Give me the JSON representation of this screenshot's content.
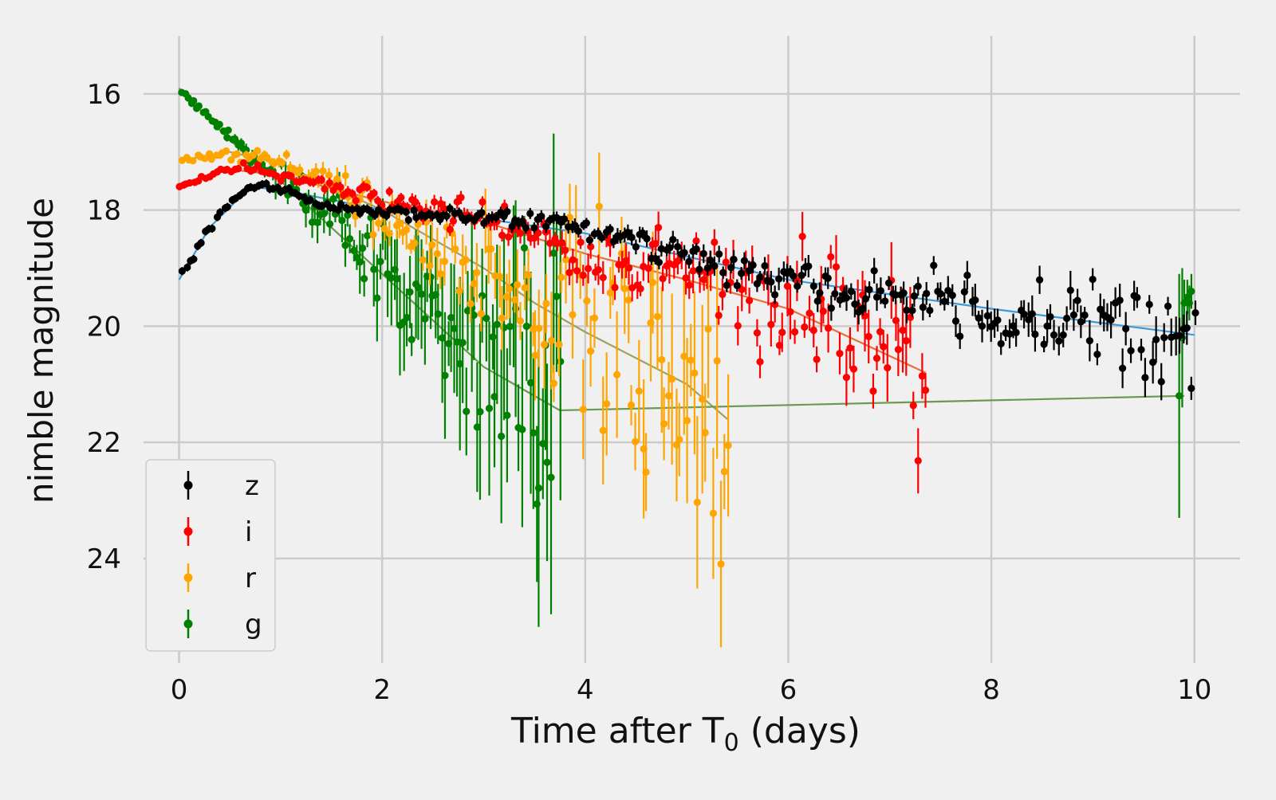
{
  "chart_data": {
    "type": "scatter",
    "title": "",
    "xlabel": "Time after T",
    "xlabel_subscript": "0",
    "xlabel_suffix": " (days)",
    "ylabel": "nimble magnitude",
    "xlim": [
      -0.35,
      10.45
    ],
    "ylim": [
      25.8,
      15.0
    ],
    "y_inverted": true,
    "grid": true,
    "legend_position": "lower-left",
    "x_ticks": [
      0,
      2,
      4,
      6,
      8,
      10
    ],
    "y_ticks": [
      16,
      18,
      20,
      22,
      24
    ],
    "series": [
      {
        "name": "z",
        "color": "#000000",
        "model_color": "#3a9ad9",
        "anchors": [
          [
            0.0,
            19.2
          ],
          [
            0.3,
            18.3
          ],
          [
            0.6,
            17.7
          ],
          [
            0.8,
            17.55
          ],
          [
            1.0,
            17.65
          ],
          [
            1.5,
            17.95
          ],
          [
            2.0,
            18.05
          ],
          [
            3.0,
            18.12
          ],
          [
            3.7,
            18.2
          ],
          [
            4.5,
            18.55
          ],
          [
            5.5,
            19.05
          ],
          [
            6.5,
            19.35
          ],
          [
            8.0,
            19.75
          ],
          [
            9.0,
            19.95
          ],
          [
            10.0,
            20.15
          ]
        ],
        "t_start": 0.0,
        "t_end": 10.0,
        "count": 270,
        "err_base": 0.07,
        "err_slope": 0.055,
        "scatter": 0.45,
        "model": [
          [
            0.0,
            19.2
          ],
          [
            0.3,
            18.3
          ],
          [
            0.7,
            17.6
          ],
          [
            1.0,
            17.65
          ],
          [
            2.0,
            18.0
          ],
          [
            3.0,
            18.15
          ],
          [
            4.0,
            18.4
          ],
          [
            5.0,
            18.8
          ],
          [
            6.0,
            19.2
          ],
          [
            8.0,
            19.7
          ],
          [
            10.0,
            20.15
          ]
        ]
      },
      {
        "name": "i",
        "color": "#ff0000",
        "model_color": "#e8703a",
        "anchors": [
          [
            0.0,
            17.6
          ],
          [
            0.3,
            17.4
          ],
          [
            0.6,
            17.25
          ],
          [
            1.0,
            17.4
          ],
          [
            1.5,
            17.6
          ],
          [
            2.0,
            17.85
          ],
          [
            3.0,
            18.15
          ],
          [
            3.5,
            18.4
          ],
          [
            4.0,
            18.7
          ],
          [
            5.0,
            19.1
          ],
          [
            6.0,
            19.5
          ],
          [
            7.0,
            20.3
          ],
          [
            7.35,
            20.8
          ]
        ],
        "t_start": 0.0,
        "t_end": 7.35,
        "count": 200,
        "err_base": 0.06,
        "err_slope": 0.11,
        "scatter": 0.85,
        "model": [
          [
            0.0,
            17.55
          ],
          [
            0.5,
            17.3
          ],
          [
            1.0,
            17.4
          ],
          [
            2.0,
            17.85
          ],
          [
            3.0,
            18.2
          ],
          [
            4.0,
            18.75
          ],
          [
            5.0,
            19.2
          ],
          [
            6.0,
            19.7
          ],
          [
            7.35,
            20.8
          ]
        ]
      },
      {
        "name": "r",
        "color": "#ffa500",
        "model_color": "#a0a060",
        "anchors": [
          [
            0.0,
            17.15
          ],
          [
            0.4,
            17.05
          ],
          [
            0.8,
            17.1
          ],
          [
            1.2,
            17.3
          ],
          [
            1.6,
            17.6
          ],
          [
            2.0,
            18.1
          ],
          [
            2.5,
            18.6
          ],
          [
            3.0,
            19.1
          ],
          [
            3.5,
            19.6
          ],
          [
            4.0,
            20.1
          ],
          [
            4.5,
            20.6
          ],
          [
            5.0,
            21.0
          ],
          [
            5.4,
            21.6
          ]
        ],
        "t_start": 0.0,
        "t_end": 5.4,
        "count": 150,
        "err_base": 0.05,
        "err_slope": 0.28,
        "scatter": 1.6,
        "model": [
          [
            0.0,
            17.15
          ],
          [
            0.5,
            17.0
          ],
          [
            1.0,
            17.2
          ],
          [
            2.0,
            18.0
          ],
          [
            3.0,
            19.0
          ],
          [
            3.5,
            19.6
          ],
          [
            4.0,
            20.1
          ],
          [
            5.0,
            21.0
          ],
          [
            5.4,
            21.6
          ]
        ]
      },
      {
        "name": "g",
        "color": "#008000",
        "model_color": "#6a9a50",
        "anchors": [
          [
            0.0,
            15.9
          ],
          [
            0.3,
            16.4
          ],
          [
            0.6,
            16.9
          ],
          [
            1.0,
            17.5
          ],
          [
            1.5,
            18.0
          ],
          [
            2.0,
            19.0
          ],
          [
            2.5,
            19.9
          ],
          [
            3.0,
            20.6
          ],
          [
            3.5,
            21.0
          ],
          [
            3.75,
            21.3
          ]
        ],
        "t_start": 0.0,
        "t_end": 3.75,
        "count": 130,
        "err_base": 0.03,
        "err_slope": 0.42,
        "scatter": 1.3,
        "model": [
          [
            0.0,
            15.9
          ],
          [
            0.5,
            16.8
          ],
          [
            1.0,
            17.5
          ],
          [
            2.0,
            19.1
          ],
          [
            3.0,
            20.7
          ],
          [
            3.75,
            21.45
          ],
          [
            9.9,
            21.2
          ]
        ],
        "late_points": [
          [
            9.85,
            21.2,
            2.1
          ],
          [
            9.88,
            20.2,
            1.2
          ],
          [
            9.9,
            19.6,
            0.4
          ],
          [
            9.93,
            19.5,
            0.3
          ],
          [
            9.95,
            19.6,
            0.3
          ],
          [
            9.97,
            19.4,
            0.3
          ]
        ]
      }
    ]
  }
}
